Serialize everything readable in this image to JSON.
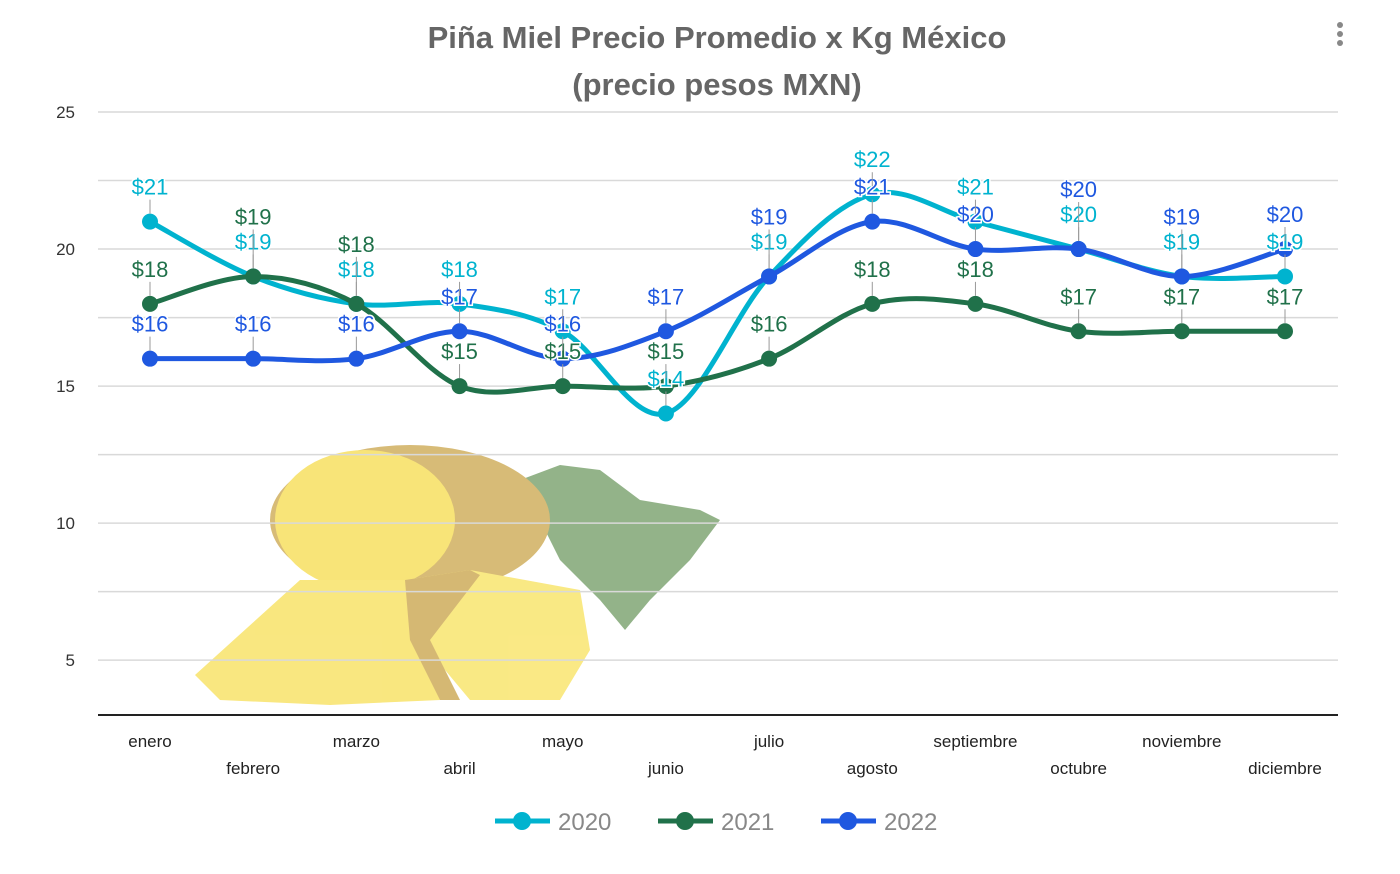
{
  "chart_data": {
    "type": "line",
    "title": [
      "Piña Miel Precio Promedio x Kg México",
      "(precio pesos MXN)"
    ],
    "xlabel": "",
    "ylabel": "",
    "categories": [
      "enero",
      "febrero",
      "marzo",
      "abril",
      "mayo",
      "junio",
      "julio",
      "agosto",
      "septiembre",
      "octubre",
      "noviembre",
      "diciembre"
    ],
    "ylim": [
      3,
      25
    ],
    "yticks": [
      5,
      10,
      15,
      20,
      25
    ],
    "grid": true,
    "legend_position": "bottom",
    "label_prefix": "$",
    "series": [
      {
        "name": "2020",
        "color": "#00b3cf",
        "values": [
          21,
          19,
          18,
          18,
          17,
          14,
          19,
          22,
          21,
          20,
          19,
          19
        ]
      },
      {
        "name": "2021",
        "color": "#20714a",
        "values": [
          18,
          19,
          18,
          15,
          15,
          15,
          16,
          18,
          18,
          17,
          17,
          17
        ]
      },
      {
        "name": "2022",
        "color": "#1f58e0",
        "values": [
          16,
          16,
          16,
          17,
          16,
          17,
          19,
          21,
          20,
          20,
          19,
          20
        ]
      }
    ]
  },
  "menu_icon": "more-vertical-icon",
  "decoration": "pineapple-image"
}
